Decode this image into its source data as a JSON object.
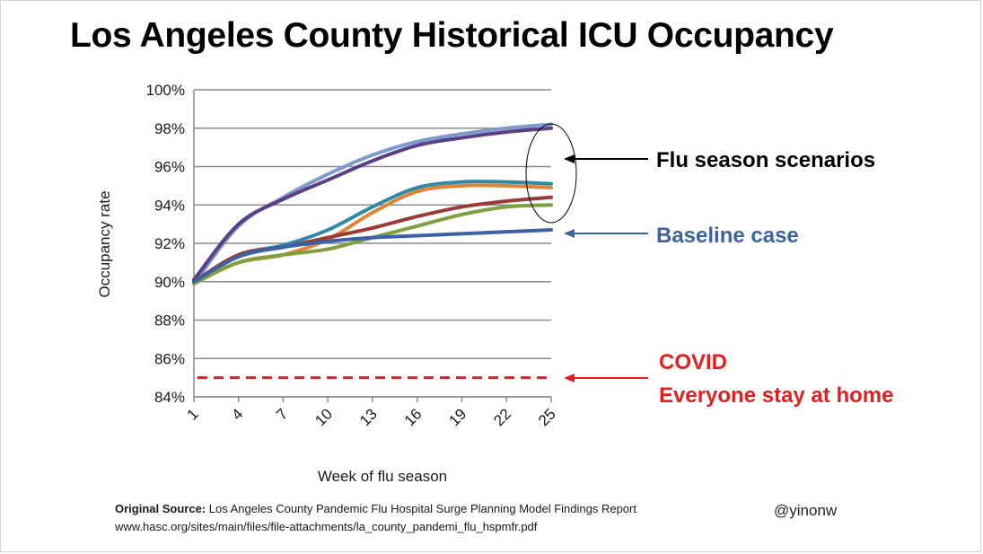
{
  "title": "Los Angeles County Historical ICU Occupancy",
  "source_label": "Original Source:",
  "source_text": "Los Angeles County Pandemic Flu Hospital Surge Planning Model Findings Report",
  "source_url": "www.hasc.org/sites/main/files/file-attachments/la_county_pandemi_flu_hspmfr.pdf",
  "handle": "@yinonw",
  "colors": {
    "grid": "#8c8c8c",
    "annotation_flu": "#000000",
    "annotation_baseline": "#3d63a0",
    "annotation_covid": "#e41e1e"
  },
  "chart_data": {
    "type": "line",
    "title": "",
    "xlabel": "Week of flu season",
    "ylabel": "Occupancy rate",
    "xlim": [
      1,
      25
    ],
    "ylim": [
      84,
      100
    ],
    "x_ticks": [
      "1",
      "4",
      "7",
      "10",
      "13",
      "16",
      "19",
      "22",
      "25"
    ],
    "y_ticks": [
      "84%",
      "86%",
      "88%",
      "90%",
      "92%",
      "94%",
      "96%",
      "98%",
      "100%"
    ],
    "grid": "horizontal",
    "x": [
      1,
      4,
      7,
      10,
      13,
      16,
      19,
      22,
      25
    ],
    "series": [
      {
        "color": "#7d9acd",
        "values": [
          89.9,
          92.9,
          94.4,
          95.6,
          96.6,
          97.3,
          97.7,
          98.0,
          98.2
        ]
      },
      {
        "color": "#5a3f86",
        "values": [
          90.1,
          93.0,
          94.3,
          95.3,
          96.3,
          97.1,
          97.5,
          97.8,
          98.0
        ]
      },
      {
        "color": "#2e8aa4",
        "values": [
          90.0,
          91.4,
          91.9,
          92.7,
          93.9,
          94.9,
          95.2,
          95.2,
          95.1
        ]
      },
      {
        "color": "#e08535",
        "values": [
          90.0,
          91.0,
          91.4,
          92.2,
          93.6,
          94.7,
          95.0,
          95.0,
          94.9
        ]
      },
      {
        "color": "#9b3a36",
        "values": [
          90.0,
          91.4,
          91.8,
          92.3,
          92.8,
          93.4,
          93.9,
          94.2,
          94.4
        ]
      },
      {
        "color": "#7fa03f",
        "values": [
          89.9,
          91.0,
          91.4,
          91.7,
          92.3,
          92.9,
          93.5,
          93.9,
          94.0
        ]
      },
      {
        "color": "#3a62a8",
        "values": [
          90.0,
          91.3,
          91.8,
          92.1,
          92.3,
          92.4,
          92.5,
          92.6,
          92.7
        ]
      }
    ],
    "reference_lines": [
      {
        "y": 85.0,
        "style": "dashed",
        "color": "#e41e1e"
      }
    ],
    "annotations": [
      {
        "text": "Flu season scenarios",
        "color": "#000000"
      },
      {
        "text": "Baseline case",
        "color": "#3d63a0"
      },
      {
        "text": "COVID",
        "color": "#e41e1e"
      },
      {
        "text": "Everyone stay at home",
        "color": "#e41e1e"
      }
    ]
  }
}
